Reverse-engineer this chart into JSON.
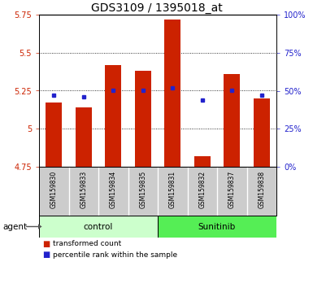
{
  "title": "GDS3109 / 1395018_at",
  "samples": [
    "GSM159830",
    "GSM159833",
    "GSM159834",
    "GSM159835",
    "GSM159831",
    "GSM159832",
    "GSM159837",
    "GSM159838"
  ],
  "groups": [
    "control",
    "control",
    "control",
    "control",
    "Sunitinib",
    "Sunitinib",
    "Sunitinib",
    "Sunitinib"
  ],
  "red_values": [
    5.17,
    5.14,
    5.42,
    5.38,
    5.72,
    4.82,
    5.36,
    5.2
  ],
  "blue_values": [
    5.22,
    5.21,
    5.25,
    5.25,
    5.27,
    5.19,
    5.25,
    5.22
  ],
  "ymin": 4.75,
  "ymax": 5.75,
  "yticks_left": [
    4.75,
    5.0,
    5.25,
    5.5,
    5.75
  ],
  "ytick_labels_left": [
    "4.75",
    "5",
    "5.25",
    "5.5",
    "5.75"
  ],
  "yticks_right": [
    0,
    25,
    50,
    75,
    100
  ],
  "ytick_labels_right": [
    "0%",
    "25%",
    "50%",
    "75%",
    "100%"
  ],
  "bar_color": "#cc2200",
  "dot_color": "#2222cc",
  "bar_bottom": 4.75,
  "control_bg": "#ccffcc",
  "sunitinib_bg": "#55ee55",
  "sample_area_bg": "#cccccc",
  "agent_label": "agent",
  "control_label": "control",
  "sunitinib_label": "Sunitinib",
  "legend_red": "transformed count",
  "legend_blue": "percentile rank within the sample",
  "title_fontsize": 10,
  "tick_fontsize": 7,
  "label_fontsize": 7.5,
  "sample_fontsize": 5.5
}
